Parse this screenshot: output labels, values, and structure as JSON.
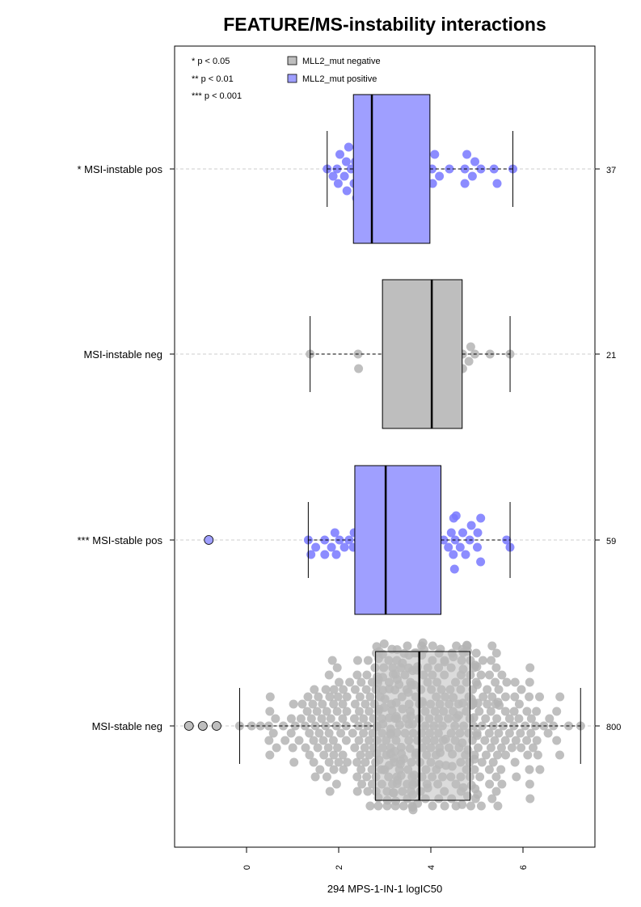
{
  "chart_data": {
    "type": "boxplot-beeswarm",
    "title": "FEATURE/MS-instability interactions",
    "xlabel": "294 MPS-1-IN-1 logIC50",
    "xlim": [
      -1.6,
      7.6
    ],
    "x_ticks": [
      0,
      2,
      4,
      6
    ],
    "x_tick_labels": [
      "0",
      "2",
      "4",
      "6"
    ],
    "significance_legend": [
      "* p < 0.05",
      "** p < 0.01",
      "*** p < 0.001"
    ],
    "legend": [
      {
        "label": "MLL2_mut negative",
        "color": "#bebebe"
      },
      {
        "label": "MLL2_mut positive",
        "color": "#9f9fff"
      }
    ],
    "colors": {
      "negative_box": "#bebebe",
      "positive_box": "#9f9fff",
      "negative_point": "#b4b4b4",
      "positive_point": "#7878ff"
    },
    "groups": [
      {
        "label": "* MSI-instable pos",
        "count": "37",
        "mutation": "positive",
        "whisker_low": 1.75,
        "q1": 2.32,
        "median": 2.72,
        "q3": 3.98,
        "whisker_high": 5.78,
        "outliers": []
      },
      {
        "label": "MSI-instable neg",
        "count": "21",
        "mutation": "negative",
        "whisker_low": 1.38,
        "q1": 2.95,
        "median": 4.02,
        "q3": 4.68,
        "whisker_high": 5.72,
        "outliers": []
      },
      {
        "label": "*** MSI-stable pos",
        "count": "59",
        "mutation": "positive",
        "whisker_low": 1.34,
        "q1": 2.35,
        "median": 3.02,
        "q3": 4.22,
        "whisker_high": 5.72,
        "outliers": [
          -0.82
        ]
      },
      {
        "label": "MSI-stable neg",
        "count": "800",
        "mutation": "negative",
        "whisker_low": -0.15,
        "q1": 2.8,
        "median": 3.75,
        "q3": 4.85,
        "whisker_high": 7.25,
        "outliers": [
          -1.25,
          -0.95,
          -0.65
        ]
      }
    ]
  }
}
